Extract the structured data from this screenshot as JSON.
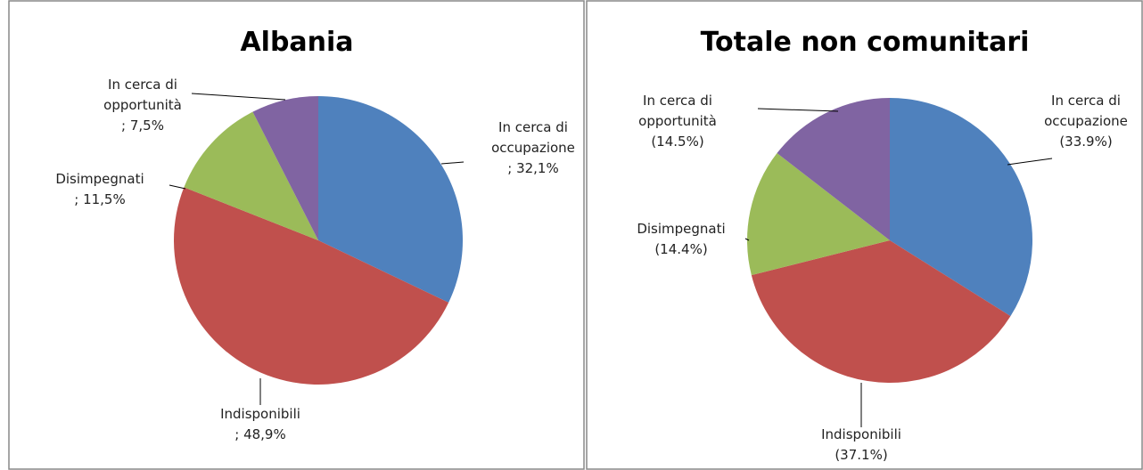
{
  "chart_data": [
    {
      "type": "pie",
      "title": "Albania",
      "categories": [
        "In cerca di occupazione",
        "Indisponibili",
        "Disimpegnati",
        "In cerca di opportunità"
      ],
      "values": [
        32.1,
        48.9,
        11.5,
        7.5
      ],
      "value_labels": [
        "; 32,1%",
        "; 48,9%",
        "; 11,5%",
        "; 7,5%"
      ],
      "colors": [
        "#4f81bd",
        "#c0504d",
        "#9bbb59",
        "#8064a2"
      ]
    },
    {
      "type": "pie",
      "title": "Totale non comunitari",
      "categories": [
        "In cerca di occupazione",
        "Indisponibili",
        "Disimpegnati",
        "In cerca di opportunità"
      ],
      "values": [
        33.9,
        37.1,
        14.4,
        14.5
      ],
      "value_labels": [
        "(33.9%)",
        "(37.1%)",
        "(14.4%)",
        "(14.5%)"
      ],
      "colors": [
        "#4f81bd",
        "#c0504d",
        "#9bbb59",
        "#8064a2"
      ]
    }
  ]
}
